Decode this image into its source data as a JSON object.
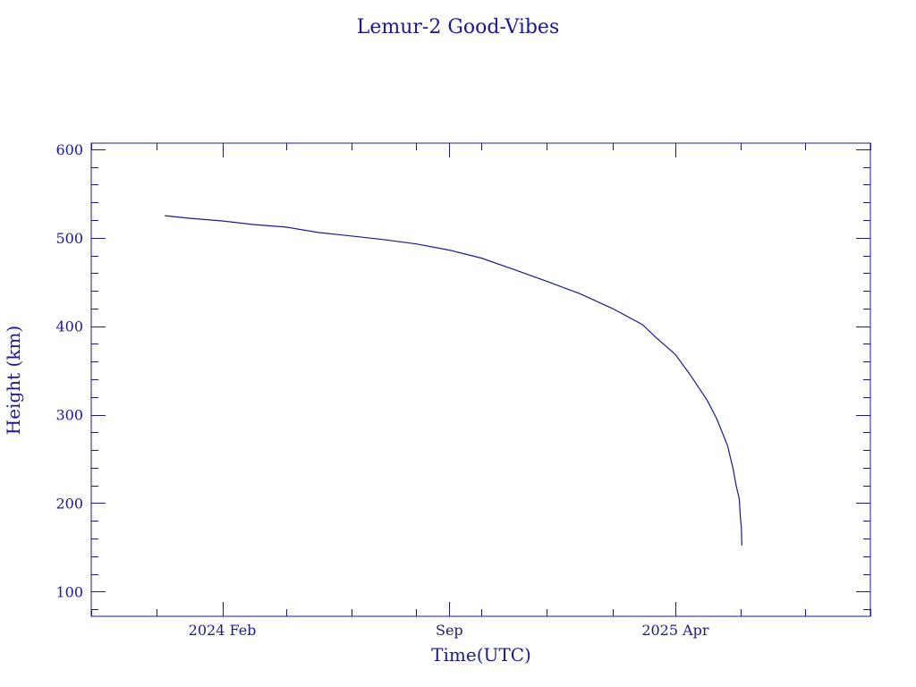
{
  "chart_data": {
    "type": "line",
    "title": "Lemur-2 Good-Vibes",
    "xlabel": "Time(UTC)",
    "ylabel": "Height (km)",
    "x_tick_labels": [
      {
        "date": "2024-02-01",
        "label": "2024 Feb"
      },
      {
        "date": "2024-09-01",
        "label": "Sep"
      },
      {
        "date": "2025-04-01",
        "label": "2025 Apr"
      }
    ],
    "xlim": [
      "2023-10-01",
      "2025-10-01"
    ],
    "y_tick_labels": [
      "100",
      "200",
      "300",
      "400",
      "500",
      "600"
    ],
    "ylim": [
      72,
      607
    ],
    "grid": false,
    "colors": {
      "ink": "#1a1a8c"
    },
    "series": [
      {
        "x": [
          "2023-12-09",
          "2024-01-01",
          "2024-02-01",
          "2024-03-01",
          "2024-04-01",
          "2024-05-01",
          "2024-06-01",
          "2024-07-01",
          "2024-08-01",
          "2024-09-01",
          "2024-10-01",
          "2024-11-01",
          "2024-12-01",
          "2025-01-01",
          "2025-02-01",
          "2025-03-01",
          "2025-03-15",
          "2025-04-01",
          "2025-04-15",
          "2025-05-01",
          "2025-05-10",
          "2025-05-20",
          "2025-05-25",
          "2025-05-28",
          "2025-05-31",
          "2025-06-01",
          "2025-06-02",
          "2025-06-02"
        ],
        "y": [
          525,
          522,
          519,
          515,
          512,
          506,
          502,
          498,
          493,
          486,
          477,
          464,
          451,
          437,
          420,
          402,
          386,
          368,
          345,
          316,
          295,
          265,
          240,
          220,
          205,
          185,
          172,
          152
        ]
      }
    ]
  }
}
